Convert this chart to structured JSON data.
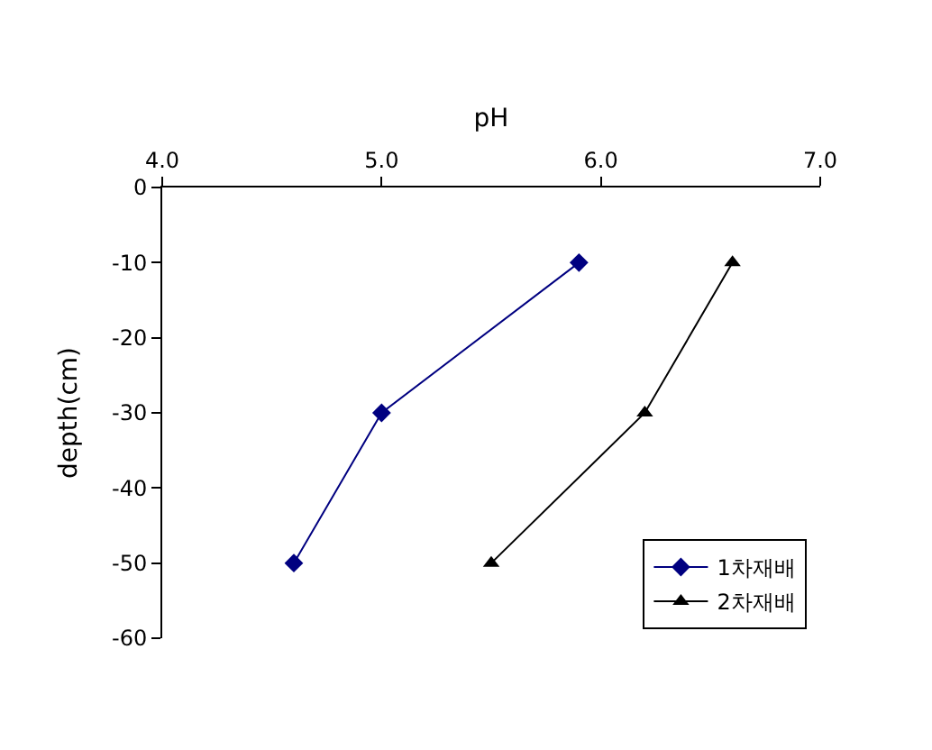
{
  "chart_data": {
    "type": "line",
    "xlabel": "pH",
    "ylabel": "depth(cm)",
    "xlim": [
      4.0,
      7.0
    ],
    "xticks": [
      {
        "value": 4,
        "label": "4.0"
      },
      {
        "value": 5,
        "label": "5.0"
      },
      {
        "value": 6,
        "label": "6.0"
      },
      {
        "value": 7,
        "label": "7.0"
      }
    ],
    "ylim": [
      -60,
      0
    ],
    "yticks": [
      0,
      -10,
      -20,
      -30,
      -40,
      -50,
      -60
    ],
    "grid": false,
    "legend": "bottom right",
    "line_style": "solid",
    "series": [
      {
        "name": "1차재배",
        "color": "#000080",
        "marker": "diamond",
        "x": [
          5.9,
          5.0,
          4.6
        ],
        "values": [
          -10,
          -30,
          -50
        ]
      },
      {
        "name": "2차재배",
        "color": "#000000",
        "marker": "triangle",
        "x": [
          6.6,
          6.2,
          5.5
        ],
        "values": [
          -10,
          -30,
          -50
        ]
      }
    ]
  }
}
